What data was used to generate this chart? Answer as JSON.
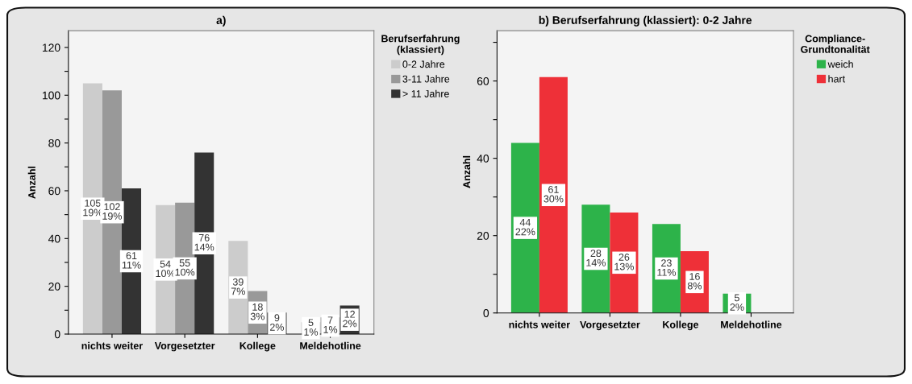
{
  "chart_data": [
    {
      "type": "bar",
      "title": "a)",
      "ylabel": "Anzahl",
      "legend_title": "Berufserfahrung\n(klassiert)",
      "legend": "right",
      "grid": false,
      "categories": [
        "nichts weiter",
        "Vorgesetzter",
        "Kollege",
        "Meldehotline"
      ],
      "ylim": [
        0,
        127
      ],
      "yticks": [
        0,
        {
          "value": 10,
          "label": null
        },
        20,
        {
          "value": 30,
          "label": null
        },
        40,
        {
          "value": 50,
          "label": null
        },
        60,
        {
          "value": 70,
          "label": null
        },
        80,
        {
          "value": 90,
          "label": null
        },
        100,
        {
          "value": 110,
          "label": null
        },
        120
      ],
      "series": [
        {
          "name": "0-2 Jahre",
          "color": "#cccccc",
          "values": [
            105,
            54,
            39,
            5
          ],
          "value_labels": [
            "105\n19%",
            "54\n10%",
            "39\n7%",
            "5\n1%"
          ]
        },
        {
          "name": "3-11 Jahre",
          "color": "#999999",
          "values": [
            102,
            55,
            18,
            7
          ],
          "value_labels": [
            "102\n19%",
            "55\n10%",
            "18\n3%",
            "7\n1%"
          ]
        },
        {
          "name": "> 11 Jahre",
          "color": "#333333",
          "values": [
            61,
            76,
            9,
            12
          ],
          "value_labels": [
            "61\n11%",
            "76\n14%",
            "9\n2%",
            "12\n2%"
          ]
        }
      ]
    },
    {
      "type": "bar",
      "title": "b) Berufserfahrung (klassiert): 0-2 Jahre",
      "ylabel": "Anzahl",
      "legend_title": "Compliance-\nGrundtonalität",
      "legend": "right",
      "grid": false,
      "categories": [
        "nichts weiter",
        "Vorgesetzter",
        "Kollege",
        "Meldehotline"
      ],
      "ylim": [
        0,
        73
      ],
      "yticks": [
        0,
        {
          "value": 10,
          "label": null
        },
        20,
        {
          "value": 30,
          "label": null
        },
        40,
        {
          "value": 50,
          "label": null
        },
        60,
        {
          "value": 70,
          "label": null
        }
      ],
      "series": [
        {
          "name": "weich",
          "color": "#2db34a",
          "values": [
            44,
            28,
            23,
            5
          ],
          "value_labels": [
            "44\n22%",
            "28\n14%",
            "23\n11%",
            "5\n2%"
          ]
        },
        {
          "name": "hart",
          "color": "#ee3038",
          "values": [
            61,
            26,
            16,
            null
          ],
          "value_labels": [
            "61\n30%",
            "26\n13%",
            "16\n8%",
            null
          ]
        }
      ]
    }
  ]
}
